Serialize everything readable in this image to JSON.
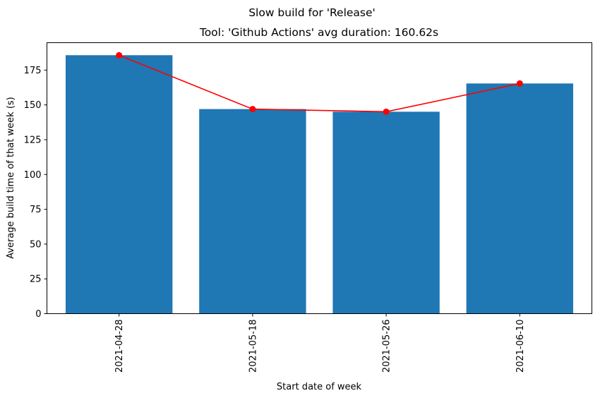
{
  "chart_data": {
    "type": "bar",
    "suptitle": "Slow build for 'Release'",
    "title": "Tool: 'Github Actions' avg duration: 160.62s",
    "xlabel": "Start date of week",
    "ylabel": "Average build time of that week (s)",
    "categories": [
      "2021-04-28",
      "2021-05-18",
      "2021-05-26",
      "2021-06-10"
    ],
    "values": [
      185.7,
      147.0,
      145.1,
      165.4
    ],
    "overlay_line_values": [
      185.7,
      147.0,
      145.1,
      165.4
    ],
    "ylim": [
      0,
      194.7
    ],
    "yticks": [
      "0",
      "25",
      "50",
      "75",
      "100",
      "125",
      "150",
      "175"
    ],
    "bar_color": "#1f77b4",
    "line_color": "#ff0000",
    "grid": false
  }
}
